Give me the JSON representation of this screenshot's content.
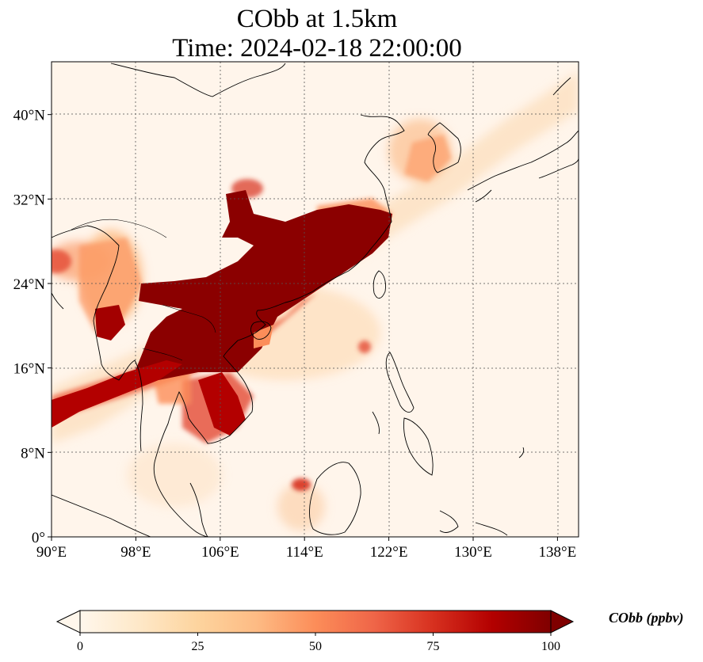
{
  "title_line1": "CObb at 1.5km",
  "title_line2": "Time: 2024-02-18 22:00:00",
  "map": {
    "lon_range": [
      90,
      140
    ],
    "lat_range": [
      0,
      45
    ],
    "lon_ticks": [
      "90°E",
      "98°E",
      "106°E",
      "114°E",
      "122°E",
      "130°E",
      "138°E"
    ],
    "lat_ticks": [
      "0°",
      "8°N",
      "16°N",
      "24°N",
      "32°N",
      "40°N"
    ],
    "gridlines": true,
    "coastlines": true,
    "background_color": "#fff5eb"
  },
  "colorbar": {
    "label": "CObb (ppbv)",
    "ticks": [
      "0",
      "25",
      "50",
      "75",
      "100"
    ],
    "range": [
      0,
      100
    ],
    "extend": "both",
    "cmap": "OrRd",
    "colors": [
      "#fff7ec",
      "#fee8c8",
      "#fdd49e",
      "#fdbb84",
      "#fc8d59",
      "#ef6548",
      "#d7301f",
      "#b30000",
      "#7f0000"
    ]
  }
}
